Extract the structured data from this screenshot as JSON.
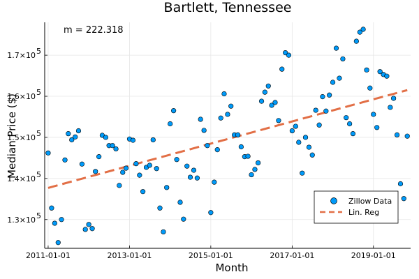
{
  "chart_data": {
    "type": "scatter",
    "title": "Bartlett, Tennessee",
    "xlabel": "Month",
    "ylabel": "Median Price ($)",
    "annotation": "m = 222.318",
    "xlim": [
      "2010-12-01",
      "2019-12-01"
    ],
    "ylim": [
      123000,
      178000
    ],
    "x_ticks": [
      "2011-01-01",
      "2013-01-01",
      "2015-01-01",
      "2017-01-01",
      "2019-01-01"
    ],
    "y_ticks": [
      {
        "value": 130000,
        "base": "1.3×10",
        "exp": "5"
      },
      {
        "value": 140000,
        "base": "1.4×10",
        "exp": "5"
      },
      {
        "value": 150000,
        "base": "1.5×10",
        "exp": "5"
      },
      {
        "value": 160000,
        "base": "1.6×10",
        "exp": "5"
      },
      {
        "value": 170000,
        "base": "1.7×10",
        "exp": "5"
      }
    ],
    "grid": true,
    "legend_position": "bottom-right",
    "series": [
      {
        "name": "Zillow Data",
        "kind": "scatter",
        "color": "#009af9",
        "x": [
          "2011-01-01",
          "2011-02-01",
          "2011-03-01",
          "2011-04-01",
          "2011-05-01",
          "2011-06-01",
          "2011-07-01",
          "2011-08-01",
          "2011-09-01",
          "2011-10-01",
          "2011-11-01",
          "2011-12-01",
          "2012-01-01",
          "2012-02-01",
          "2012-03-01",
          "2012-04-01",
          "2012-05-01",
          "2012-06-01",
          "2012-07-01",
          "2012-08-01",
          "2012-09-01",
          "2012-10-01",
          "2012-11-01",
          "2012-12-01",
          "2013-01-01",
          "2013-02-01",
          "2013-03-01",
          "2013-04-01",
          "2013-05-01",
          "2013-06-01",
          "2013-07-01",
          "2013-08-01",
          "2013-09-01",
          "2013-10-01",
          "2013-11-01",
          "2013-12-01",
          "2014-01-01",
          "2014-02-01",
          "2014-03-01",
          "2014-04-01",
          "2014-05-01",
          "2014-06-01",
          "2014-07-01",
          "2014-08-01",
          "2014-09-01",
          "2014-10-01",
          "2014-11-01",
          "2014-12-01",
          "2015-01-01",
          "2015-02-01",
          "2015-03-01",
          "2015-04-01",
          "2015-05-01",
          "2015-06-01",
          "2015-07-01",
          "2015-08-01",
          "2015-09-01",
          "2015-10-01",
          "2015-11-01",
          "2015-12-01",
          "2016-01-01",
          "2016-02-01",
          "2016-03-01",
          "2016-04-01",
          "2016-05-01",
          "2016-06-01",
          "2016-07-01",
          "2016-08-01",
          "2016-09-01",
          "2016-10-01",
          "2016-11-01",
          "2016-12-01",
          "2017-01-01",
          "2017-02-01",
          "2017-03-01",
          "2017-04-01",
          "2017-05-01",
          "2017-06-01",
          "2017-07-01",
          "2017-08-01",
          "2017-09-01",
          "2017-10-01",
          "2017-11-01",
          "2017-12-01",
          "2018-01-01",
          "2018-02-01",
          "2018-03-01",
          "2018-04-01",
          "2018-05-01",
          "2018-06-01",
          "2018-07-01",
          "2018-08-01",
          "2018-09-01",
          "2018-10-01",
          "2018-11-01",
          "2018-12-01",
          "2019-01-01",
          "2019-02-01",
          "2019-03-01",
          "2019-04-01",
          "2019-05-01",
          "2019-06-01",
          "2019-07-01",
          "2019-08-01",
          "2019-09-01",
          "2019-10-01",
          "2019-11-01"
        ],
        "y": [
          146200,
          132800,
          129100,
          124400,
          130000,
          144500,
          150900,
          149400,
          150100,
          151600,
          143500,
          127600,
          128800,
          127800,
          141700,
          145300,
          150500,
          150000,
          148000,
          148000,
          147200,
          138300,
          141500,
          142500,
          149600,
          149300,
          143600,
          140800,
          136800,
          142700,
          143200,
          149400,
          142400,
          132800,
          127000,
          137800,
          153300,
          156500,
          144600,
          134200,
          130100,
          143000,
          140300,
          142000,
          140100,
          154400,
          151700,
          148000,
          131700,
          139100,
          147000,
          154700,
          160600,
          155600,
          157600,
          150600,
          150600,
          147700,
          145300,
          145400,
          140900,
          142200,
          143800,
          158800,
          161000,
          162500,
          157800,
          158500,
          154100,
          166600,
          170600,
          170000,
          151600,
          152700,
          148800,
          141300,
          150000,
          147600,
          145700,
          156600,
          153000,
          159900,
          156400,
          160300,
          163400,
          171700,
          164400,
          169100,
          154800,
          153300,
          150900,
          173400,
          175600,
          176300,
          166400,
          162000,
          155600,
          152400,
          166000,
          165300,
          164900,
          157300,
          159500,
          150600,
          138700,
          135100,
          150300
        ]
      },
      {
        "name": "Lin. Reg",
        "kind": "line",
        "color": "#e26f46",
        "x": [
          "2011-01-01",
          "2019-11-01"
        ],
        "y": [
          137700,
          161500
        ]
      }
    ]
  }
}
